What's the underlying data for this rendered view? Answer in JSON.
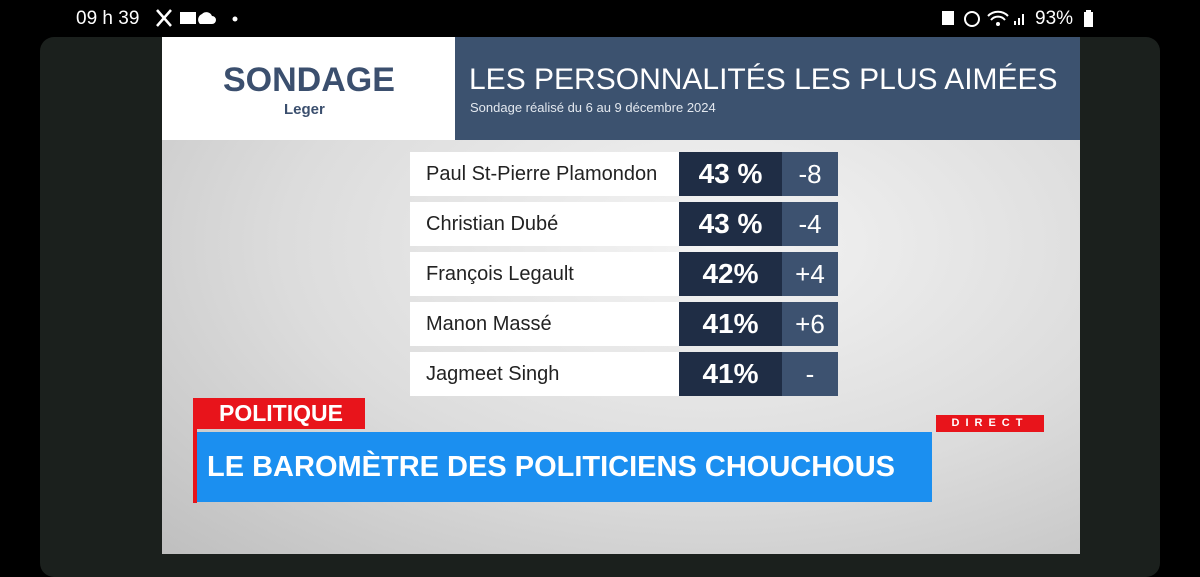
{
  "status_bar": {
    "time": "09 h 39",
    "battery": "93%"
  },
  "header": {
    "brand": "SONDAGE",
    "logo": "Leger",
    "title": "LES PERSONNALITÉS LES PLUS AIMÉES",
    "subtitle": "Sondage réalisé du 6 au 9 décembre 2024"
  },
  "table": {
    "rows": [
      [
        "Paul St-Pierre Plamondon",
        "43 %",
        "-8"
      ],
      [
        "Christian Dubé",
        "43 %",
        "-4"
      ],
      [
        "François Legault",
        "42%",
        "+4"
      ],
      [
        "Manon Massé",
        "41%",
        "+6"
      ],
      [
        "Jagmeet Singh",
        "41%",
        "-"
      ]
    ]
  },
  "ticker": {
    "section": "POLITIQUE",
    "headline": "LE BAROMÈTRE DES POLITICIENS CHOUCHOUS",
    "live": "DIRECT"
  }
}
